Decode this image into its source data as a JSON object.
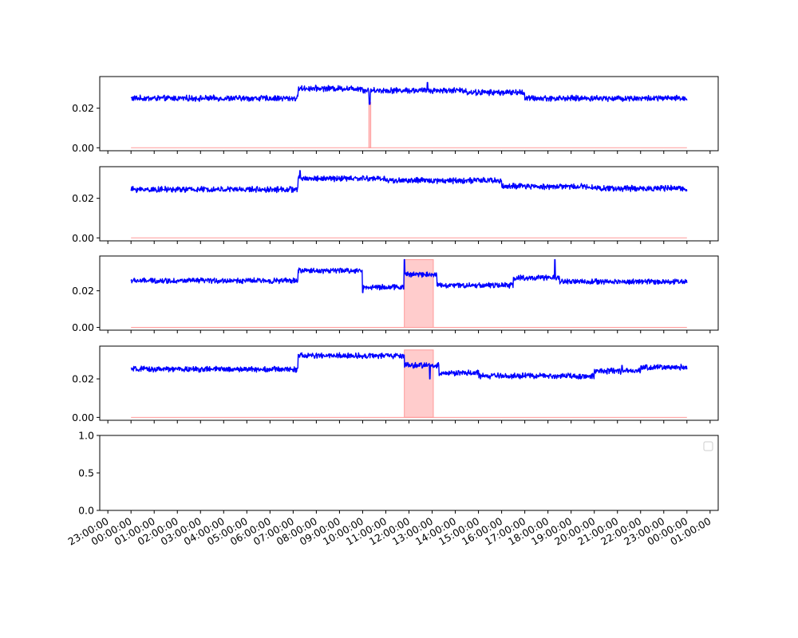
{
  "colors": {
    "line": "#0000ff",
    "highlight_fill": "#ffcccc",
    "highlight_edge": "#ff9999",
    "axis": "#000000",
    "background": "#ffffff"
  },
  "x_axis": {
    "type": "time",
    "xlim_hours": [
      -1.35,
      25.35
    ],
    "tick_hours": [
      -1,
      0,
      1,
      2,
      3,
      4,
      5,
      6,
      7,
      8,
      9,
      10,
      11,
      12,
      13,
      14,
      15,
      16,
      17,
      18,
      19,
      20,
      21,
      22,
      23,
      24,
      25
    ],
    "tick_labels": [
      "23:00:00",
      "00:00:00",
      "01:00:00",
      "02:00:00",
      "03:00:00",
      "04:00:00",
      "05:00:00",
      "06:00:00",
      "07:00:00",
      "08:00:00",
      "09:00:00",
      "10:00:00",
      "11:00:00",
      "12:00:00",
      "13:00:00",
      "14:00:00",
      "15:00:00",
      "16:00:00",
      "17:00:00",
      "18:00:00",
      "19:00:00",
      "20:00:00",
      "21:00:00",
      "22:00:00",
      "23:00:00",
      "00:00:00",
      "01:00:00"
    ],
    "label_rotation_deg": 30,
    "shared": true
  },
  "chart_data": [
    {
      "type": "line",
      "ylim": [
        -0.0015,
        0.036
      ],
      "yticks": [
        0.0,
        0.02
      ],
      "ytick_labels": [
        "0.00",
        "0.02"
      ],
      "grid": false,
      "signal": {
        "noise": 0.0012,
        "segments": [
          {
            "x0": 0.0,
            "x1": 7.2,
            "level": 0.025
          },
          {
            "x0": 7.2,
            "x1": 10.0,
            "level": 0.03
          },
          {
            "x0": 10.0,
            "x1": 14.5,
            "level": 0.029
          },
          {
            "x0": 14.5,
            "x1": 17.0,
            "level": 0.028
          },
          {
            "x0": 17.0,
            "x1": 24.0,
            "level": 0.025
          }
        ],
        "spikes": [
          {
            "x": 10.3,
            "value": 0.022
          },
          {
            "x": 12.8,
            "value": 0.033
          }
        ]
      },
      "highlights": [
        {
          "x0": 10.27,
          "x1": 10.35,
          "top": 0.023
        }
      ],
      "baseline": {
        "x0": 0.0,
        "x1": 24.0,
        "value": 0.0
      }
    },
    {
      "type": "line",
      "ylim": [
        -0.0015,
        0.036
      ],
      "yticks": [
        0.0,
        0.02
      ],
      "ytick_labels": [
        "0.00",
        "0.02"
      ],
      "grid": false,
      "signal": {
        "noise": 0.0012,
        "segments": [
          {
            "x0": 0.0,
            "x1": 7.2,
            "level": 0.0245
          },
          {
            "x0": 7.2,
            "x1": 11.0,
            "level": 0.03
          },
          {
            "x0": 11.0,
            "x1": 16.0,
            "level": 0.029
          },
          {
            "x0": 16.0,
            "x1": 20.0,
            "level": 0.026
          },
          {
            "x0": 20.0,
            "x1": 24.0,
            "level": 0.025
          }
        ],
        "spikes": [
          {
            "x": 7.3,
            "value": 0.034
          }
        ]
      },
      "highlights": [],
      "baseline": {
        "x0": 0.0,
        "x1": 24.0,
        "value": 0.0
      }
    },
    {
      "type": "line",
      "ylim": [
        -0.0015,
        0.039
      ],
      "yticks": [
        0.0,
        0.02
      ],
      "ytick_labels": [
        "0.00",
        "0.02"
      ],
      "grid": false,
      "signal": {
        "noise": 0.0012,
        "segments": [
          {
            "x0": 0.0,
            "x1": 7.2,
            "level": 0.0255
          },
          {
            "x0": 7.2,
            "x1": 10.0,
            "level": 0.031
          },
          {
            "x0": 10.0,
            "x1": 11.8,
            "level": 0.022
          },
          {
            "x0": 11.8,
            "x1": 13.2,
            "level": 0.029
          },
          {
            "x0": 13.2,
            "x1": 16.5,
            "level": 0.023
          },
          {
            "x0": 16.5,
            "x1": 18.5,
            "level": 0.027
          },
          {
            "x0": 18.5,
            "x1": 24.0,
            "level": 0.025
          }
        ],
        "spikes": [
          {
            "x": 11.8,
            "value": 0.037
          },
          {
            "x": 18.3,
            "value": 0.037
          },
          {
            "x": 10.0,
            "value": 0.019
          }
        ]
      },
      "highlights": [
        {
          "x0": 11.8,
          "x1": 13.05,
          "top": 0.037
        }
      ],
      "baseline": {
        "x0": 0.0,
        "x1": 24.0,
        "value": 0.0
      }
    },
    {
      "type": "line",
      "ylim": [
        -0.0015,
        0.037
      ],
      "yticks": [
        0.0,
        0.02
      ],
      "ytick_labels": [
        "0.00",
        "0.02"
      ],
      "grid": false,
      "signal": {
        "noise": 0.0012,
        "segments": [
          {
            "x0": 0.0,
            "x1": 7.2,
            "level": 0.025
          },
          {
            "x0": 7.2,
            "x1": 11.8,
            "level": 0.032
          },
          {
            "x0": 11.8,
            "x1": 13.3,
            "level": 0.027
          },
          {
            "x0": 13.3,
            "x1": 15.0,
            "level": 0.023
          },
          {
            "x0": 15.0,
            "x1": 20.0,
            "level": 0.0215
          },
          {
            "x0": 20.0,
            "x1": 22.0,
            "level": 0.024
          },
          {
            "x0": 22.0,
            "x1": 24.0,
            "level": 0.026
          }
        ],
        "spikes": [
          {
            "x": 12.9,
            "value": 0.02
          },
          {
            "x": 21.2,
            "value": 0.027
          }
        ]
      },
      "highlights": [
        {
          "x0": 11.8,
          "x1": 13.05,
          "top": 0.035
        }
      ],
      "baseline": {
        "x0": 0.0,
        "x1": 24.0,
        "value": 0.0
      }
    },
    {
      "type": "line",
      "ylim": [
        0.0,
        1.0
      ],
      "yticks": [
        0.0,
        0.5,
        1.0
      ],
      "ytick_labels": [
        "0.0",
        "0.5",
        "1.0"
      ],
      "grid": false,
      "series": [],
      "legend": {
        "placement": "top-right",
        "entries": []
      }
    }
  ]
}
